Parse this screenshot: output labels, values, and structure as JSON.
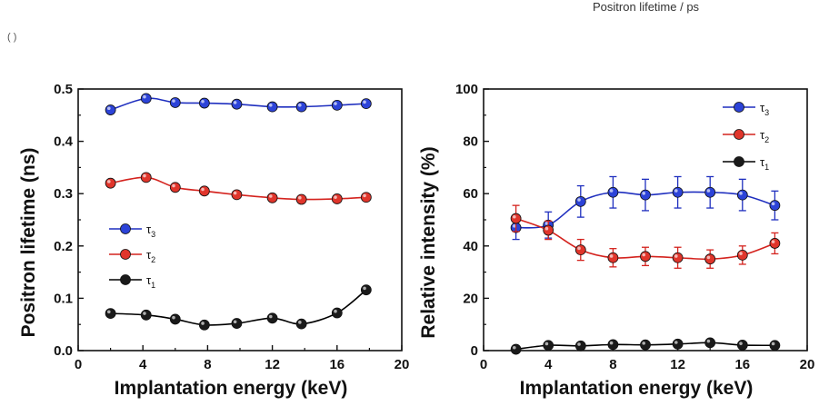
{
  "header": {
    "caption": "Positron lifetime / ps",
    "fragment": "(  )"
  },
  "chart_data": [
    {
      "type": "line",
      "xlabel": "Implantation energy (keV)",
      "ylabel": "Positron lifetime (ns)",
      "xlim": [
        0,
        20
      ],
      "ylim": [
        0.0,
        0.5
      ],
      "xticks": [
        0,
        4,
        8,
        12,
        16,
        20
      ],
      "yticks": [
        0.0,
        0.1,
        0.2,
        0.3,
        0.4,
        0.5
      ],
      "ytick_labels": [
        "0.0",
        "0.1",
        "0.2",
        "0.3",
        "0.4",
        "0.5"
      ],
      "legend": "center-left",
      "x": [
        2,
        4.2,
        6,
        7.8,
        9.8,
        12,
        13.8,
        16,
        17.8
      ],
      "series": [
        {
          "name": "τ",
          "sub": "3",
          "color": "#1f2fbf",
          "marker": "#2c43d8",
          "values": [
            0.46,
            0.482,
            0.474,
            0.473,
            0.471,
            0.466,
            0.466,
            0.469,
            0.472
          ]
        },
        {
          "name": "τ",
          "sub": "2",
          "color": "#d4231e",
          "marker": "#e0352b",
          "values": [
            0.32,
            0.331,
            0.312,
            0.305,
            0.298,
            0.292,
            0.289,
            0.29,
            0.293
          ]
        },
        {
          "name": "τ",
          "sub": "1",
          "color": "#000000",
          "marker": "#1a1a1a",
          "values": [
            0.071,
            0.068,
            0.06,
            0.049,
            0.052,
            0.062,
            0.051,
            0.072,
            0.116
          ]
        }
      ]
    },
    {
      "type": "line",
      "xlabel": "Implantation energy (keV)",
      "ylabel": "Relative intensity (%)",
      "xlim": [
        0,
        20
      ],
      "ylim": [
        0,
        100
      ],
      "xticks": [
        0,
        4,
        8,
        12,
        16,
        20
      ],
      "yticks": [
        0,
        20,
        40,
        60,
        80,
        100
      ],
      "ytick_labels": [
        "0",
        "20",
        "40",
        "60",
        "80",
        "100"
      ],
      "legend": "top-right",
      "x": [
        2,
        4,
        6,
        8,
        10,
        12,
        14,
        16,
        18
      ],
      "series": [
        {
          "name": "τ",
          "sub": "3",
          "color": "#1f2fbf",
          "marker": "#2c43d8",
          "values": [
            47,
            48,
            57,
            60.5,
            59.5,
            60.5,
            60.5,
            59.5,
            55.5
          ],
          "errors": [
            4.5,
            5,
            6,
            6,
            6,
            6,
            6,
            6,
            5.5
          ]
        },
        {
          "name": "τ",
          "sub": "2",
          "color": "#d4231e",
          "marker": "#e0352b",
          "values": [
            50.5,
            46,
            38.5,
            35.5,
            36,
            35.5,
            35,
            36.5,
            41
          ],
          "errors": [
            5,
            3.5,
            4,
            3.5,
            3.5,
            4,
            3.5,
            3.5,
            4
          ]
        },
        {
          "name": "τ",
          "sub": "1",
          "color": "#000000",
          "marker": "#1a1a1a",
          "values": [
            0.5,
            2,
            1.8,
            2.3,
            2.2,
            2.5,
            3,
            2.1,
            2
          ],
          "errors": [
            0.5,
            1,
            0.8,
            1,
            0.8,
            1,
            1,
            0.8,
            0.8
          ]
        }
      ]
    }
  ]
}
